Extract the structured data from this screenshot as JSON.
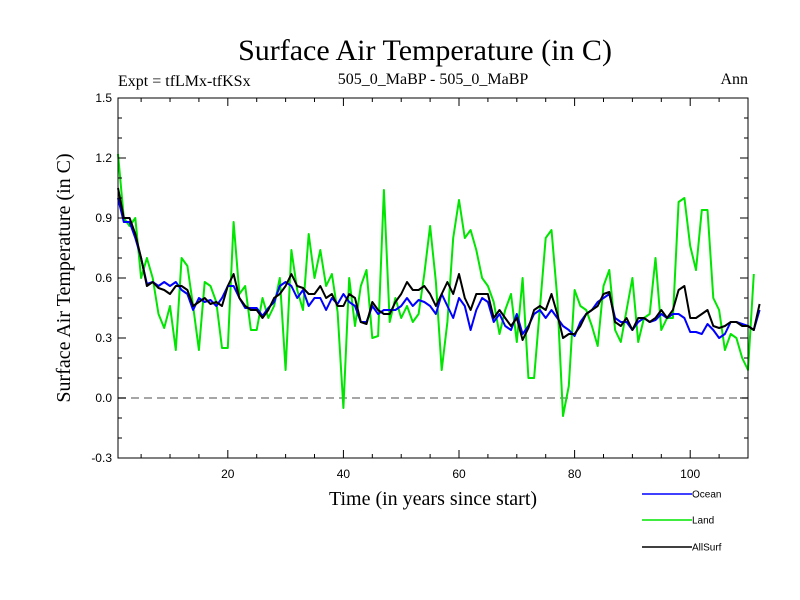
{
  "chart_data": {
    "type": "line",
    "title": "Surface Air Temperature (in C)",
    "subtitle_left": "Expt = tfLMx-tfKSx",
    "subtitle_center": "505_0_MaBP - 505_0_MaBP",
    "subtitle_right": "Ann",
    "xlabel": "Time (in years since start)",
    "ylabel": "Surface Air Temperature (in C)",
    "xlim": [
      1,
      110
    ],
    "ylim": [
      -0.3,
      1.5
    ],
    "x_ticks": [
      20,
      40,
      60,
      80,
      100
    ],
    "y_ticks": [
      "-0.3",
      "0.0",
      "0.3",
      "0.6",
      "0.9",
      "1.2",
      "1.5"
    ],
    "reference_line": 0.0,
    "series": [
      {
        "name": "Ocean",
        "color": "#0000ff",
        "values": [
          1.0,
          0.88,
          0.88,
          0.8,
          0.7,
          0.57,
          0.58,
          0.56,
          0.58,
          0.56,
          0.58,
          0.54,
          0.52,
          0.44,
          0.5,
          0.48,
          0.49,
          0.46,
          0.5,
          0.56,
          0.56,
          0.5,
          0.45,
          0.45,
          0.45,
          0.41,
          0.45,
          0.48,
          0.56,
          0.58,
          0.56,
          0.5,
          0.54,
          0.46,
          0.5,
          0.5,
          0.44,
          0.5,
          0.47,
          0.52,
          0.48,
          0.46,
          0.38,
          0.38,
          0.46,
          0.42,
          0.44,
          0.44,
          0.44,
          0.46,
          0.5,
          0.46,
          0.49,
          0.48,
          0.46,
          0.42,
          0.52,
          0.46,
          0.4,
          0.5,
          0.46,
          0.34,
          0.44,
          0.5,
          0.48,
          0.38,
          0.42,
          0.36,
          0.34,
          0.42,
          0.32,
          0.36,
          0.42,
          0.44,
          0.4,
          0.44,
          0.4,
          0.36,
          0.34,
          0.31,
          0.38,
          0.42,
          0.44,
          0.48,
          0.5,
          0.52,
          0.4,
          0.38,
          0.38,
          0.34,
          0.38,
          0.4,
          0.38,
          0.39,
          0.42,
          0.4,
          0.42,
          0.42,
          0.4,
          0.33,
          0.33,
          0.32,
          0.37,
          0.34,
          0.3,
          0.32,
          0.38,
          0.38,
          0.37,
          0.36,
          0.34,
          0.44
        ]
      },
      {
        "name": "Land",
        "color": "#00e600",
        "values": [
          1.22,
          0.9,
          0.86,
          0.9,
          0.6,
          0.7,
          0.6,
          0.42,
          0.35,
          0.46,
          0.24,
          0.7,
          0.66,
          0.46,
          0.24,
          0.58,
          0.56,
          0.48,
          0.25,
          0.25,
          0.88,
          0.52,
          0.56,
          0.34,
          0.34,
          0.5,
          0.4,
          0.46,
          0.6,
          0.14,
          0.74,
          0.54,
          0.44,
          0.82,
          0.6,
          0.74,
          0.56,
          0.62,
          0.43,
          -0.05,
          0.6,
          0.36,
          0.56,
          0.64,
          0.3,
          0.31,
          1.04,
          0.38,
          0.5,
          0.4,
          0.46,
          0.38,
          0.42,
          0.62,
          0.86,
          0.58,
          0.14,
          0.38,
          0.8,
          0.99,
          0.8,
          0.84,
          0.74,
          0.6,
          0.56,
          0.48,
          0.32,
          0.44,
          0.52,
          0.28,
          0.6,
          0.1,
          0.1,
          0.45,
          0.8,
          0.84,
          0.5,
          -0.09,
          0.06,
          0.54,
          0.46,
          0.44,
          0.36,
          0.26,
          0.56,
          0.64,
          0.34,
          0.28,
          0.44,
          0.6,
          0.28,
          0.4,
          0.42,
          0.7,
          0.34,
          0.4,
          0.4,
          0.98,
          1.0,
          0.76,
          0.64,
          0.94,
          0.94,
          0.5,
          0.44,
          0.24,
          0.32,
          0.3,
          0.2,
          0.14,
          0.62
        ]
      },
      {
        "name": "AllSurf",
        "color": "#000000",
        "values": [
          1.05,
          0.9,
          0.9,
          0.82,
          0.7,
          0.56,
          0.58,
          0.55,
          0.54,
          0.52,
          0.56,
          0.56,
          0.54,
          0.46,
          0.48,
          0.5,
          0.47,
          0.48,
          0.46,
          0.56,
          0.62,
          0.5,
          0.46,
          0.44,
          0.44,
          0.4,
          0.44,
          0.5,
          0.52,
          0.56,
          0.62,
          0.56,
          0.55,
          0.52,
          0.52,
          0.56,
          0.5,
          0.52,
          0.46,
          0.46,
          0.52,
          0.5,
          0.38,
          0.37,
          0.48,
          0.44,
          0.42,
          0.42,
          0.48,
          0.52,
          0.58,
          0.54,
          0.54,
          0.56,
          0.52,
          0.46,
          0.52,
          0.58,
          0.52,
          0.62,
          0.5,
          0.44,
          0.52,
          0.52,
          0.52,
          0.4,
          0.44,
          0.4,
          0.36,
          0.4,
          0.29,
          0.35,
          0.44,
          0.46,
          0.44,
          0.52,
          0.42,
          0.3,
          0.32,
          0.32,
          0.36,
          0.42,
          0.44,
          0.46,
          0.52,
          0.53,
          0.38,
          0.36,
          0.4,
          0.34,
          0.4,
          0.4,
          0.38,
          0.4,
          0.44,
          0.4,
          0.44,
          0.54,
          0.56,
          0.4,
          0.4,
          0.42,
          0.44,
          0.36,
          0.35,
          0.36,
          0.38,
          0.38,
          0.36,
          0.36,
          0.34,
          0.47
        ]
      }
    ],
    "legend": [
      "Ocean",
      "Land",
      "AllSurf"
    ]
  }
}
